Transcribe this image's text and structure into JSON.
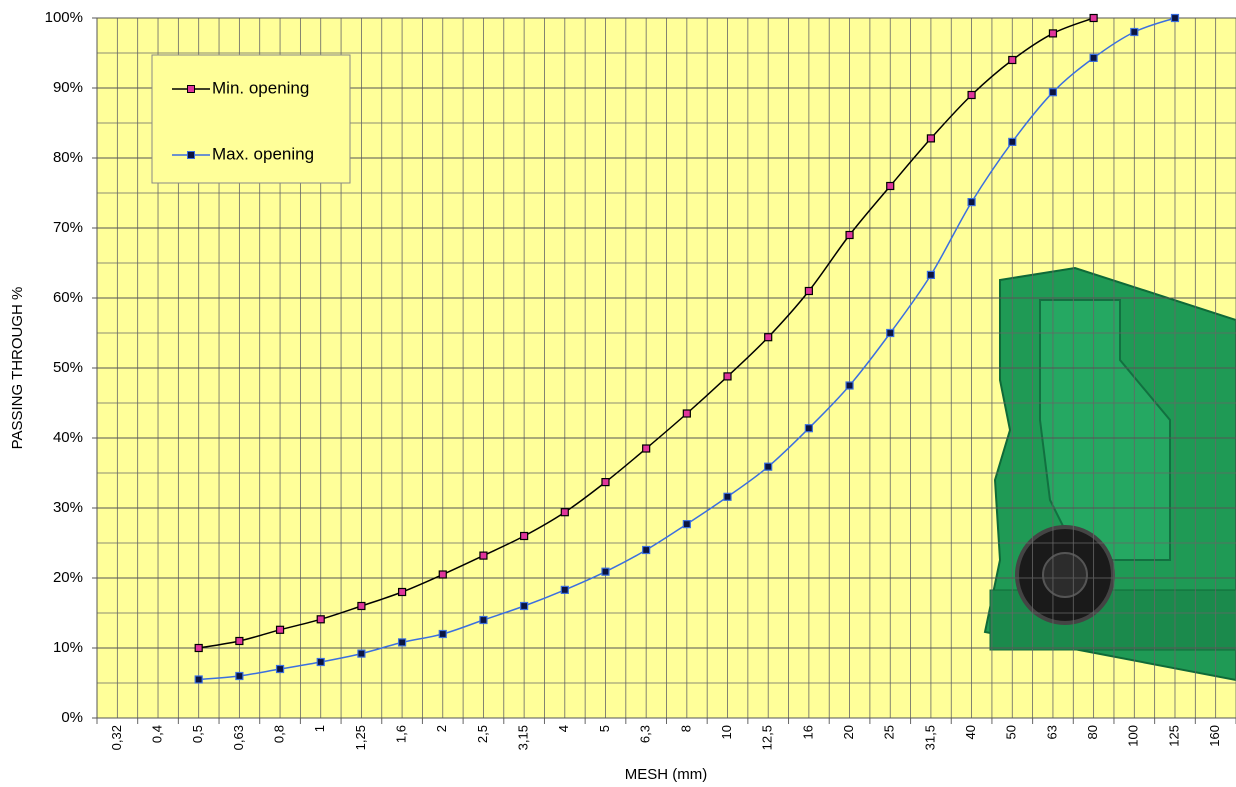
{
  "chart_data": {
    "type": "line",
    "x_label": "MESH (mm)",
    "y_label": "PASSING THROUGH %",
    "categories": [
      "0,32",
      "0,4",
      "0,5",
      "0,63",
      "0,8",
      "1",
      "1,25",
      "1,6",
      "2",
      "2,5",
      "3,15",
      "4",
      "5",
      "6,3",
      "8",
      "10",
      "12,5",
      "16",
      "20",
      "25",
      "31,5",
      "40",
      "50",
      "63",
      "80",
      "100",
      "125",
      "160"
    ],
    "series": [
      {
        "name": "Min. opening",
        "color": "#000000",
        "marker_color": "#e0359c",
        "values": [
          null,
          null,
          10,
          11,
          12.6,
          14.1,
          16,
          18,
          20.5,
          23.2,
          26,
          29.4,
          33.7,
          38.5,
          43.5,
          48.8,
          54.4,
          61,
          69,
          76,
          82.8,
          89,
          94,
          97.8,
          100,
          null,
          null,
          null
        ]
      },
      {
        "name": "Max. opening",
        "color": "#3b6fe0",
        "marker_color": "#0b1440",
        "values": [
          null,
          null,
          5.5,
          6,
          7,
          8,
          9.2,
          10.8,
          12,
          14,
          16,
          18.3,
          20.9,
          24,
          27.7,
          31.6,
          35.9,
          41.4,
          47.5,
          55,
          63.3,
          73.7,
          82.3,
          89.4,
          94.3,
          98,
          100,
          null
        ]
      }
    ],
    "ylim": [
      0,
      100
    ],
    "yticks": [
      {
        "value": 0,
        "label": "0%"
      },
      {
        "value": 10,
        "label": "10%"
      },
      {
        "value": 20,
        "label": "20%"
      },
      {
        "value": 30,
        "label": "30%"
      },
      {
        "value": 40,
        "label": "40%"
      },
      {
        "value": 50,
        "label": "50%"
      },
      {
        "value": 60,
        "label": "60%"
      },
      {
        "value": 70,
        "label": "70%"
      },
      {
        "value": 80,
        "label": "80%"
      },
      {
        "value": 90,
        "label": "90%"
      },
      {
        "value": 100,
        "label": "100%"
      }
    ],
    "grid": true,
    "background": "#ffff99",
    "legend": "upper left"
  }
}
